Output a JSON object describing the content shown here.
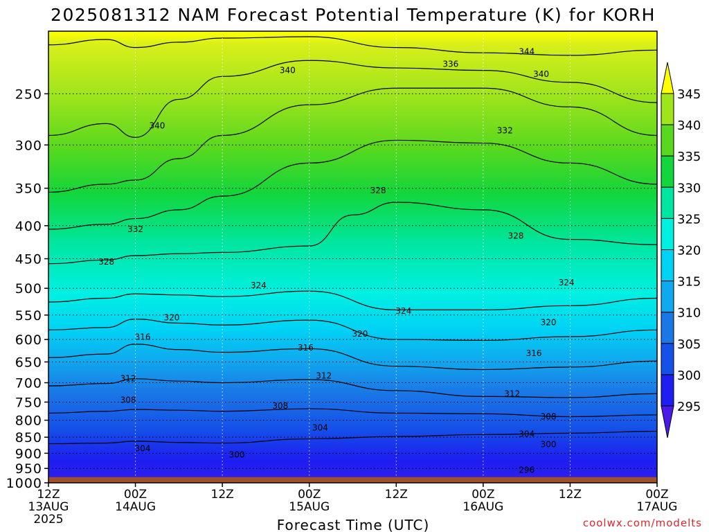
{
  "chart_data": {
    "type": "heatmap",
    "title": "2025081312 NAM Forecast Potential Temperature (K) for KORH",
    "xlabel": "Forecast Time (UTC)",
    "ylabel": "",
    "x_ticks": [
      {
        "hour": 0,
        "lines": [
          "12Z",
          "13AUG",
          "2025"
        ]
      },
      {
        "hour": 12,
        "lines": [
          "00Z",
          "14AUG"
        ]
      },
      {
        "hour": 24,
        "lines": [
          "12Z"
        ]
      },
      {
        "hour": 36,
        "lines": [
          "00Z",
          "15AUG"
        ]
      },
      {
        "hour": 48,
        "lines": [
          "12Z"
        ]
      },
      {
        "hour": 60,
        "lines": [
          "00Z",
          "16AUG"
        ]
      },
      {
        "hour": 72,
        "lines": [
          "12Z"
        ]
      },
      {
        "hour": 84,
        "lines": [
          "00Z",
          "17AUG"
        ]
      }
    ],
    "xlim": [
      0,
      84
    ],
    "y_ticks": [
      250,
      300,
      350,
      400,
      450,
      500,
      550,
      600,
      650,
      700,
      750,
      800,
      850,
      900,
      950,
      1000
    ],
    "ylim": [
      1000,
      200
    ],
    "ground_pressure": 980,
    "colorbar": {
      "labels": [
        345,
        340,
        335,
        330,
        325,
        320,
        315,
        310,
        305,
        300,
        295
      ],
      "levels": [
        {
          "from": 290,
          "to": 295,
          "color": "#4a1be8"
        },
        {
          "from": 295,
          "to": 300,
          "color": "#1e1ef0"
        },
        {
          "from": 300,
          "to": 305,
          "color": "#1550e8"
        },
        {
          "from": 305,
          "to": 310,
          "color": "#1a78e6"
        },
        {
          "from": 310,
          "to": 315,
          "color": "#10a8ee"
        },
        {
          "from": 315,
          "to": 320,
          "color": "#00d2f5"
        },
        {
          "from": 320,
          "to": 325,
          "color": "#00f0e2"
        },
        {
          "from": 325,
          "to": 330,
          "color": "#00e6a0"
        },
        {
          "from": 330,
          "to": 335,
          "color": "#12d63c"
        },
        {
          "from": 335,
          "to": 340,
          "color": "#58d81e"
        },
        {
          "from": 340,
          "to": 345,
          "color": "#a0e41c"
        },
        {
          "from": 345,
          "to": 350,
          "color": "#ffff00"
        }
      ]
    },
    "series": [
      {
        "value": 304,
        "points": [
          [
            0,
            870
          ],
          [
            8,
            868
          ],
          [
            12,
            862
          ],
          [
            18,
            866
          ],
          [
            24,
            868
          ],
          [
            36,
            855
          ],
          [
            48,
            848
          ],
          [
            60,
            842
          ],
          [
            72,
            838
          ],
          [
            84,
            832
          ]
        ]
      },
      {
        "value": 308,
        "points": [
          [
            0,
            780
          ],
          [
            8,
            775
          ],
          [
            12,
            770
          ],
          [
            18,
            772
          ],
          [
            24,
            775
          ],
          [
            36,
            768
          ],
          [
            48,
            780
          ],
          [
            60,
            782
          ],
          [
            72,
            790
          ],
          [
            84,
            785
          ]
        ]
      },
      {
        "value": 312,
        "points": [
          [
            0,
            708
          ],
          [
            8,
            702
          ],
          [
            12,
            690
          ],
          [
            18,
            696
          ],
          [
            24,
            700
          ],
          [
            36,
            692
          ],
          [
            48,
            720
          ],
          [
            60,
            735
          ],
          [
            72,
            738
          ],
          [
            84,
            728
          ]
        ]
      },
      {
        "value": 316,
        "points": [
          [
            0,
            640
          ],
          [
            8,
            632
          ],
          [
            12,
            610
          ],
          [
            18,
            622
          ],
          [
            24,
            628
          ],
          [
            36,
            620
          ],
          [
            48,
            660
          ],
          [
            60,
            668
          ],
          [
            72,
            662
          ],
          [
            84,
            648
          ]
        ]
      },
      {
        "value": 320,
        "points": [
          [
            0,
            580
          ],
          [
            8,
            575
          ],
          [
            12,
            558
          ],
          [
            18,
            566
          ],
          [
            24,
            570
          ],
          [
            36,
            560
          ],
          [
            48,
            600
          ],
          [
            60,
            602
          ],
          [
            72,
            594
          ],
          [
            84,
            580
          ]
        ]
      },
      {
        "value": 324,
        "points": [
          [
            0,
            525
          ],
          [
            8,
            518
          ],
          [
            12,
            510
          ],
          [
            18,
            512
          ],
          [
            24,
            515
          ],
          [
            36,
            505
          ],
          [
            48,
            540
          ],
          [
            60,
            540
          ],
          [
            72,
            532
          ],
          [
            84,
            518
          ]
        ]
      },
      {
        "value": 328,
        "points": [
          [
            0,
            458
          ],
          [
            8,
            452
          ],
          [
            12,
            445
          ],
          [
            18,
            442
          ],
          [
            24,
            440
          ],
          [
            36,
            430
          ],
          [
            42,
            385
          ],
          [
            48,
            368
          ],
          [
            60,
            378
          ],
          [
            72,
            420
          ],
          [
            84,
            428
          ]
        ]
      },
      {
        "value": 332,
        "points": [
          [
            0,
            405
          ],
          [
            8,
            398
          ],
          [
            12,
            390
          ],
          [
            18,
            378
          ],
          [
            24,
            360
          ],
          [
            36,
            320
          ],
          [
            48,
            295
          ],
          [
            60,
            298
          ],
          [
            72,
            320
          ],
          [
            84,
            345
          ]
        ]
      },
      {
        "value": 336,
        "points": [
          [
            0,
            355
          ],
          [
            8,
            345
          ],
          [
            12,
            340
          ],
          [
            18,
            315
          ],
          [
            24,
            290
          ],
          [
            36,
            260
          ],
          [
            48,
            245
          ],
          [
            60,
            245
          ],
          [
            72,
            262
          ],
          [
            84,
            290
          ]
        ]
      },
      {
        "value": 340,
        "points": [
          [
            0,
            290
          ],
          [
            8,
            278
          ],
          [
            12,
            292
          ],
          [
            18,
            255
          ],
          [
            24,
            235
          ],
          [
            36,
            222
          ],
          [
            48,
            228
          ],
          [
            60,
            230
          ],
          [
            72,
            240
          ],
          [
            84,
            258
          ]
        ]
      },
      {
        "value": 344,
        "points": [
          [
            0,
            210
          ],
          [
            8,
            206
          ],
          [
            12,
            212
          ],
          [
            18,
            208
          ],
          [
            24,
            205
          ],
          [
            36,
            204
          ],
          [
            48,
            212
          ],
          [
            60,
            216
          ],
          [
            72,
            218
          ],
          [
            84,
            214
          ]
        ]
      }
    ],
    "annotations": [
      {
        "text": "304",
        "hour": 13,
        "pressure": 885
      },
      {
        "text": "304",
        "hour": 37.5,
        "pressure": 822
      },
      {
        "text": "304",
        "hour": 66,
        "pressure": 840
      },
      {
        "text": "300",
        "hour": 26,
        "pressure": 905
      },
      {
        "text": "300",
        "hour": 69,
        "pressure": 872
      },
      {
        "text": "296",
        "hour": 66,
        "pressure": 955
      },
      {
        "text": "308",
        "hour": 11,
        "pressure": 745
      },
      {
        "text": "308",
        "hour": 32,
        "pressure": 760
      },
      {
        "text": "308",
        "hour": 69,
        "pressure": 790
      },
      {
        "text": "312",
        "hour": 11,
        "pressure": 690
      },
      {
        "text": "312",
        "hour": 38,
        "pressure": 683
      },
      {
        "text": "312",
        "hour": 64,
        "pressure": 728
      },
      {
        "text": "316",
        "hour": 13,
        "pressure": 595
      },
      {
        "text": "316",
        "hour": 35.5,
        "pressure": 618
      },
      {
        "text": "316",
        "hour": 67,
        "pressure": 630
      },
      {
        "text": "320",
        "hour": 17,
        "pressure": 555
      },
      {
        "text": "320",
        "hour": 43,
        "pressure": 588
      },
      {
        "text": "320",
        "hour": 69,
        "pressure": 565
      },
      {
        "text": "324",
        "hour": 29,
        "pressure": 495
      },
      {
        "text": "324",
        "hour": 49,
        "pressure": 542
      },
      {
        "text": "324",
        "hour": 71.5,
        "pressure": 490
      },
      {
        "text": "328",
        "hour": 8,
        "pressure": 455
      },
      {
        "text": "328",
        "hour": 45.5,
        "pressure": 353
      },
      {
        "text": "328",
        "hour": 64.5,
        "pressure": 415
      },
      {
        "text": "332",
        "hour": 12,
        "pressure": 405
      },
      {
        "text": "332",
        "hour": 63,
        "pressure": 285
      },
      {
        "text": "336",
        "hour": 55.5,
        "pressure": 225
      },
      {
        "text": "340",
        "hour": 15,
        "pressure": 280
      },
      {
        "text": "340",
        "hour": 33,
        "pressure": 230
      },
      {
        "text": "340",
        "hour": 68,
        "pressure": 233
      },
      {
        "text": "344",
        "hour": 66,
        "pressure": 215
      }
    ]
  },
  "footer": {
    "credit": "coolwx.com/modelts"
  }
}
